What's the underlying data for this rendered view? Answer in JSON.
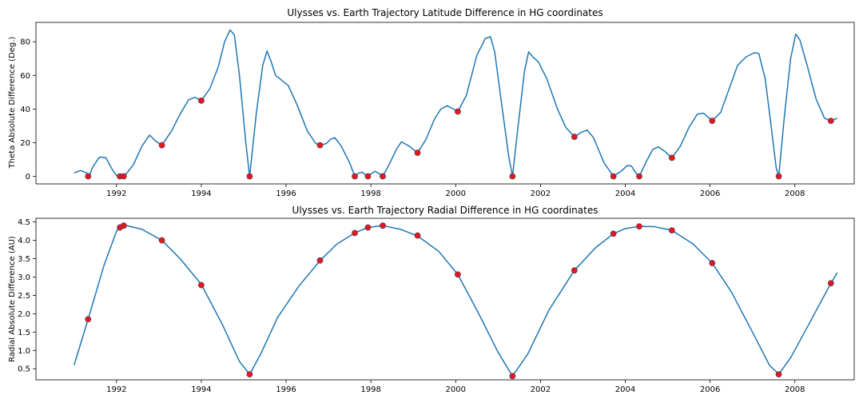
{
  "colors": {
    "line": "#1f77b4",
    "marker": "#e31a1c",
    "marker_edge": "#3b3b6e",
    "axes": "#000000"
  },
  "chart_data": [
    {
      "type": "line",
      "title": "Ulysses vs. Earth Trajectory Latitude Difference in HG coordinates",
      "xlabel": "",
      "ylabel": "Theta Absolute Difference (Deg.)",
      "xlim": [
        1990.1,
        2009.4
      ],
      "ylim": [
        -4.5,
        91.5
      ],
      "xticks": [
        1992,
        1994,
        1996,
        1998,
        2000,
        2002,
        2004,
        2006,
        2008
      ],
      "yticks": [
        0,
        20,
        40,
        60,
        80
      ],
      "grid": false,
      "series": [
        {
          "kind": "line",
          "points": [
            [
              1991.0,
              2
            ],
            [
              1991.15,
              3.5
            ],
            [
              1991.3,
              2
            ],
            [
              1991.35,
              0
            ],
            [
              1991.45,
              6
            ],
            [
              1991.6,
              11.5
            ],
            [
              1991.75,
              11
            ],
            [
              1991.9,
              4
            ],
            [
              1992.0,
              0.5
            ],
            [
              1992.08,
              0
            ],
            [
              1992.15,
              0
            ],
            [
              1992.2,
              0.5
            ],
            [
              1992.4,
              7
            ],
            [
              1992.6,
              18
            ],
            [
              1992.78,
              24.5
            ],
            [
              1992.92,
              21
            ],
            [
              1993.07,
              18.5
            ],
            [
              1993.3,
              27
            ],
            [
              1993.5,
              37
            ],
            [
              1993.7,
              45.5
            ],
            [
              1993.85,
              47
            ],
            [
              1994.0,
              45
            ],
            [
              1994.2,
              52
            ],
            [
              1994.4,
              65
            ],
            [
              1994.55,
              80
            ],
            [
              1994.68,
              87
            ],
            [
              1994.78,
              84
            ],
            [
              1994.9,
              60
            ],
            [
              1995.05,
              20
            ],
            [
              1995.14,
              0
            ],
            [
              1995.3,
              38
            ],
            [
              1995.45,
              66
            ],
            [
              1995.55,
              74.5
            ],
            [
              1995.65,
              68
            ],
            [
              1995.75,
              60
            ],
            [
              1995.9,
              57
            ],
            [
              1996.05,
              54
            ],
            [
              1996.25,
              43
            ],
            [
              1996.5,
              27
            ],
            [
              1996.7,
              19.5
            ],
            [
              1996.8,
              18.5
            ],
            [
              1996.95,
              19.5
            ],
            [
              1997.05,
              22
            ],
            [
              1997.15,
              23
            ],
            [
              1997.3,
              18
            ],
            [
              1997.5,
              8
            ],
            [
              1997.62,
              0
            ],
            [
              1997.72,
              2
            ],
            [
              1997.8,
              2.5
            ],
            [
              1997.88,
              0.5
            ],
            [
              1997.93,
              0
            ],
            [
              1998.0,
              1.5
            ],
            [
              1998.1,
              3
            ],
            [
              1998.2,
              1.5
            ],
            [
              1998.28,
              0
            ],
            [
              1998.45,
              8
            ],
            [
              1998.6,
              16
            ],
            [
              1998.72,
              20.5
            ],
            [
              1998.9,
              18
            ],
            [
              1999.1,
              14
            ],
            [
              1999.3,
              22
            ],
            [
              1999.5,
              34
            ],
            [
              1999.65,
              40
            ],
            [
              1999.8,
              42
            ],
            [
              1999.95,
              40
            ],
            [
              2000.05,
              38.5
            ],
            [
              2000.25,
              48
            ],
            [
              2000.5,
              72
            ],
            [
              2000.7,
              82
            ],
            [
              2000.82,
              83
            ],
            [
              2000.92,
              74
            ],
            [
              2001.1,
              40
            ],
            [
              2001.25,
              12
            ],
            [
              2001.34,
              0
            ],
            [
              2001.45,
              25
            ],
            [
              2001.62,
              62
            ],
            [
              2001.72,
              74
            ],
            [
              2001.82,
              71
            ],
            [
              2001.95,
              68
            ],
            [
              2002.15,
              58
            ],
            [
              2002.4,
              40
            ],
            [
              2002.6,
              29
            ],
            [
              2002.8,
              23.5
            ],
            [
              2002.95,
              26
            ],
            [
              2003.1,
              27.5
            ],
            [
              2003.25,
              23
            ],
            [
              2003.5,
              8
            ],
            [
              2003.72,
              0
            ],
            [
              2003.9,
              3
            ],
            [
              2004.05,
              6.5
            ],
            [
              2004.15,
              6
            ],
            [
              2004.25,
              2
            ],
            [
              2004.33,
              0
            ],
            [
              2004.5,
              9
            ],
            [
              2004.65,
              16
            ],
            [
              2004.78,
              17.5
            ],
            [
              2004.95,
              14.5
            ],
            [
              2005.1,
              11
            ],
            [
              2005.3,
              18
            ],
            [
              2005.5,
              29
            ],
            [
              2005.7,
              37
            ],
            [
              2005.85,
              37.5
            ],
            [
              2006.05,
              33
            ],
            [
              2006.25,
              38
            ],
            [
              2006.45,
              52
            ],
            [
              2006.65,
              66
            ],
            [
              2006.85,
              71
            ],
            [
              2007.05,
              73.5
            ],
            [
              2007.15,
              73
            ],
            [
              2007.3,
              58
            ],
            [
              2007.45,
              28
            ],
            [
              2007.56,
              5
            ],
            [
              2007.62,
              0
            ],
            [
              2007.75,
              35
            ],
            [
              2007.9,
              70
            ],
            [
              2008.02,
              84.5
            ],
            [
              2008.12,
              81
            ],
            [
              2008.3,
              65
            ],
            [
              2008.5,
              46
            ],
            [
              2008.7,
              34.5
            ],
            [
              2008.85,
              33
            ],
            [
              2009.0,
              34.5
            ]
          ]
        },
        {
          "kind": "scatter",
          "points": [
            [
              1991.33,
              0
            ],
            [
              1992.08,
              0
            ],
            [
              1992.17,
              0
            ],
            [
              1993.07,
              18.5
            ],
            [
              1994.0,
              45
            ],
            [
              1995.14,
              0
            ],
            [
              1996.8,
              18.5
            ],
            [
              1997.62,
              0
            ],
            [
              1997.93,
              0
            ],
            [
              1998.28,
              0
            ],
            [
              1999.1,
              14
            ],
            [
              2000.05,
              38.5
            ],
            [
              2001.34,
              0
            ],
            [
              2002.8,
              23.5
            ],
            [
              2003.72,
              0
            ],
            [
              2004.33,
              0
            ],
            [
              2005.1,
              11
            ],
            [
              2006.05,
              33
            ],
            [
              2007.62,
              0
            ],
            [
              2008.85,
              33
            ]
          ]
        }
      ]
    },
    {
      "type": "line",
      "title": "Ulysses vs. Earth Trajectory Radial Difference in HG coordinates",
      "xlabel": "",
      "ylabel": "Radial Absolute Difference (AU)",
      "xlim": [
        1990.1,
        2009.4
      ],
      "ylim": [
        0.2,
        4.6
      ],
      "xticks": [
        1992,
        1994,
        1996,
        1998,
        2000,
        2002,
        2004,
        2006,
        2008
      ],
      "yticks": [
        0.5,
        1.0,
        1.5,
        2.0,
        2.5,
        3.0,
        3.5,
        4.0,
        4.5
      ],
      "ytick_labels": [
        "0.5",
        "1.0",
        "1.5",
        "2.0",
        "2.5",
        "3.0",
        "3.5",
        "4.0",
        "4.5"
      ],
      "grid": false,
      "series": [
        {
          "kind": "line",
          "points": [
            [
              1991.0,
              0.6
            ],
            [
              1991.33,
              1.85
            ],
            [
              1991.7,
              3.3
            ],
            [
              1992.0,
              4.25
            ],
            [
              1992.17,
              4.42
            ],
            [
              1992.6,
              4.3
            ],
            [
              1993.07,
              4.0
            ],
            [
              1993.5,
              3.5
            ],
            [
              1994.0,
              2.8
            ],
            [
              1994.5,
              1.7
            ],
            [
              1994.9,
              0.7
            ],
            [
              1995.14,
              0.35
            ],
            [
              1995.4,
              0.9
            ],
            [
              1995.8,
              1.9
            ],
            [
              1996.3,
              2.75
            ],
            [
              1996.8,
              3.45
            ],
            [
              1997.2,
              3.9
            ],
            [
              1997.62,
              4.2
            ],
            [
              1997.93,
              4.35
            ],
            [
              1998.28,
              4.4
            ],
            [
              1998.7,
              4.3
            ],
            [
              1999.1,
              4.12
            ],
            [
              1999.6,
              3.7
            ],
            [
              2000.05,
              3.07
            ],
            [
              2000.5,
              2.1
            ],
            [
              2001.0,
              0.95
            ],
            [
              2001.34,
              0.3
            ],
            [
              2001.7,
              0.9
            ],
            [
              2002.2,
              2.1
            ],
            [
              2002.8,
              3.18
            ],
            [
              2003.3,
              3.8
            ],
            [
              2003.72,
              4.18
            ],
            [
              2004.0,
              4.32
            ],
            [
              2004.33,
              4.38
            ],
            [
              2004.7,
              4.37
            ],
            [
              2005.1,
              4.27
            ],
            [
              2005.6,
              3.9
            ],
            [
              2006.05,
              3.38
            ],
            [
              2006.5,
              2.6
            ],
            [
              2007.0,
              1.5
            ],
            [
              2007.4,
              0.6
            ],
            [
              2007.62,
              0.35
            ],
            [
              2007.9,
              0.8
            ],
            [
              2008.3,
              1.65
            ],
            [
              2008.85,
              2.83
            ],
            [
              2009.0,
              3.12
            ]
          ]
        },
        {
          "kind": "scatter",
          "points": [
            [
              1991.33,
              1.85
            ],
            [
              1992.08,
              4.35
            ],
            [
              1992.17,
              4.4
            ],
            [
              1993.07,
              4.0
            ],
            [
              1994.0,
              2.78
            ],
            [
              1995.14,
              0.35
            ],
            [
              1996.8,
              3.45
            ],
            [
              1997.62,
              4.2
            ],
            [
              1997.93,
              4.35
            ],
            [
              1998.28,
              4.4
            ],
            [
              1999.1,
              4.13
            ],
            [
              2000.05,
              3.07
            ],
            [
              2001.34,
              0.3
            ],
            [
              2002.8,
              3.18
            ],
            [
              2003.72,
              4.18
            ],
            [
              2004.33,
              4.38
            ],
            [
              2005.1,
              4.27
            ],
            [
              2006.05,
              3.38
            ],
            [
              2007.62,
              0.35
            ],
            [
              2008.85,
              2.83
            ]
          ]
        }
      ]
    }
  ]
}
